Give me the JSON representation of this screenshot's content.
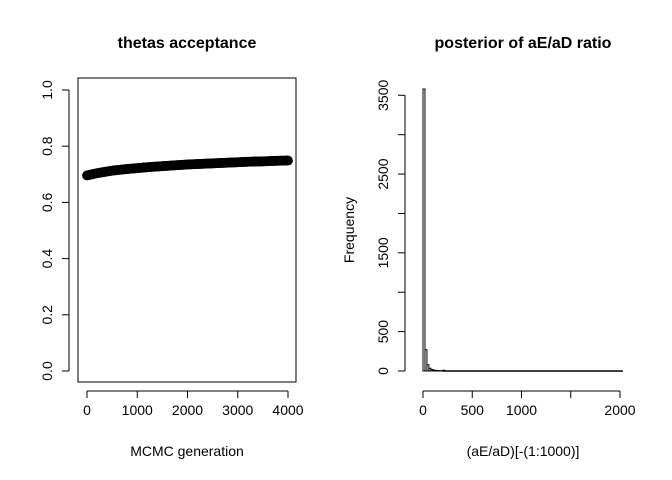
{
  "chart_data": [
    {
      "type": "scatter",
      "title": "thetas acceptance",
      "xlabel": "MCMC generation",
      "ylabel": "",
      "xlim": [
        0,
        4000
      ],
      "ylim": [
        0,
        1
      ],
      "xticks": [
        "0",
        "1000",
        "2000",
        "3000",
        "4000"
      ],
      "yticks": [
        "0.0",
        "0.2",
        "0.4",
        "0.6",
        "0.8",
        "1.0"
      ],
      "marker_color": "#000000",
      "x": [
        0,
        100,
        200,
        300,
        400,
        500,
        750,
        1000,
        1250,
        1500,
        1750,
        2000,
        2250,
        2500,
        2750,
        3000,
        3250,
        3500,
        3750,
        4000
      ],
      "y": [
        0.696,
        0.7,
        0.704,
        0.707,
        0.71,
        0.713,
        0.718,
        0.722,
        0.726,
        0.729,
        0.732,
        0.735,
        0.737,
        0.739,
        0.741,
        0.743,
        0.745,
        0.746,
        0.748,
        0.749
      ]
    },
    {
      "type": "bar",
      "title": "posterior of aE/aD ratio",
      "xlabel": "(aE/aD)[-(1:1000)]",
      "ylabel": "Frequency",
      "xlim": [
        -10,
        2050
      ],
      "ylim": [
        0,
        3580
      ],
      "xticks": [
        "0",
        "500",
        "1000",
        "2000"
      ],
      "yticks": [
        "0",
        "500",
        "1500",
        "2500",
        "3500"
      ],
      "bin_width": 20,
      "bin_starts": [
        0,
        20,
        40,
        60,
        80,
        100,
        120,
        140,
        160,
        180,
        200
      ],
      "values": [
        3580,
        270,
        80,
        35,
        20,
        12,
        8,
        5,
        4,
        3,
        10
      ]
    }
  ]
}
